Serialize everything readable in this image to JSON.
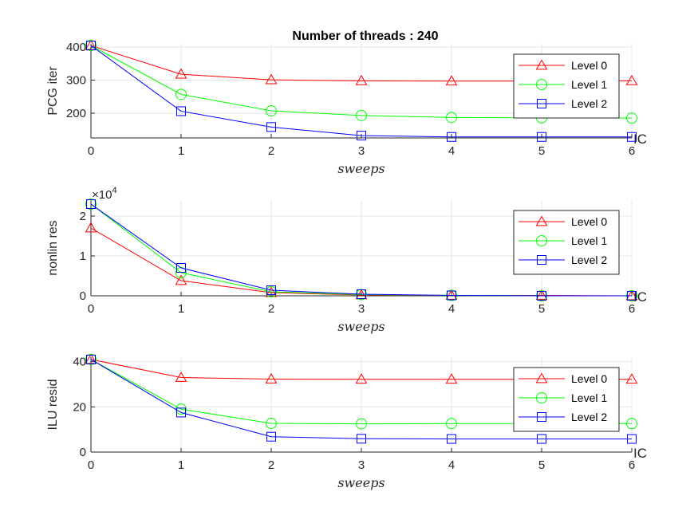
{
  "figure": {
    "title": "Number of threads : 240"
  },
  "chart_data": [
    {
      "type": "line",
      "title": "Number of threads : 240",
      "xlabel": "sweeps",
      "ylabel": "PCG iter",
      "x": [
        0,
        1,
        2,
        3,
        4,
        5,
        6
      ],
      "xlim": [
        0,
        6
      ],
      "ylim": [
        125,
        410
      ],
      "xticks": [
        "0",
        "1",
        "2",
        "3",
        "4",
        "5",
        "6"
      ],
      "yticks": [
        200,
        300,
        400
      ],
      "ytick_labels": [
        "200",
        "300",
        "400"
      ],
      "exponent_label": "",
      "corner_label": "IC",
      "grid": true,
      "legend_position": "top-right",
      "series": [
        {
          "name": "Level 0",
          "color": "#ff0000",
          "marker": "triangle",
          "values": [
            405,
            318,
            301,
            298,
            297,
            297,
            298
          ]
        },
        {
          "name": "Level 1",
          "color": "#00ff00",
          "marker": "circle",
          "values": [
            405,
            257,
            207,
            193,
            187,
            186,
            185
          ]
        },
        {
          "name": "Level 2",
          "color": "#0000ff",
          "marker": "square",
          "values": [
            405,
            206,
            158,
            132,
            128,
            128,
            128
          ]
        }
      ]
    },
    {
      "type": "line",
      "title": "",
      "xlabel": "sweeps",
      "ylabel": "nonlin res",
      "x": [
        0,
        1,
        2,
        3,
        4,
        5,
        6
      ],
      "xlim": [
        0,
        6
      ],
      "ylim": [
        0,
        2.4
      ],
      "xticks": [
        "0",
        "1",
        "2",
        "3",
        "4",
        "5",
        "6"
      ],
      "yticks": [
        0,
        1,
        2
      ],
      "ytick_labels": [
        "0",
        "1",
        "2"
      ],
      "exponent_label": "×10",
      "exponent_power": "4",
      "corner_label": "IC",
      "grid": true,
      "legend_position": "top-right",
      "series": [
        {
          "name": "Level 0",
          "color": "#ff0000",
          "marker": "triangle",
          "values": [
            1.7,
            0.38,
            0.08,
            0.02,
            0.01,
            0.01,
            0.0
          ]
        },
        {
          "name": "Level 1",
          "color": "#00ff00",
          "marker": "circle",
          "values": [
            2.3,
            0.58,
            0.1,
            0.03,
            0.01,
            0.0,
            0.0
          ]
        },
        {
          "name": "Level 2",
          "color": "#0000ff",
          "marker": "square",
          "values": [
            2.3,
            0.7,
            0.14,
            0.04,
            0.01,
            0.0,
            0.0
          ]
        }
      ]
    },
    {
      "type": "line",
      "title": "",
      "xlabel": "sweeps",
      "ylabel": "ILU resid",
      "x": [
        0,
        1,
        2,
        3,
        4,
        5,
        6
      ],
      "xlim": [
        0,
        6
      ],
      "ylim": [
        0,
        42
      ],
      "xticks": [
        "0",
        "1",
        "2",
        "3",
        "4",
        "5",
        "6"
      ],
      "yticks": [
        0,
        20,
        40
      ],
      "ytick_labels": [
        "0",
        "20",
        "40"
      ],
      "exponent_label": "",
      "corner_label": "IC",
      "grid": true,
      "legend_position": "top-right",
      "series": [
        {
          "name": "Level 0",
          "color": "#ff0000",
          "marker": "triangle",
          "values": [
            41,
            33,
            32.3,
            32.2,
            32.2,
            32.2,
            32.2
          ]
        },
        {
          "name": "Level 1",
          "color": "#00ff00",
          "marker": "circle",
          "values": [
            41,
            19,
            12.7,
            12.5,
            12.6,
            12.6,
            12.6
          ]
        },
        {
          "name": "Level 2",
          "color": "#0000ff",
          "marker": "square",
          "values": [
            41,
            17.5,
            6.8,
            5.9,
            5.8,
            5.8,
            5.8
          ]
        }
      ]
    }
  ]
}
